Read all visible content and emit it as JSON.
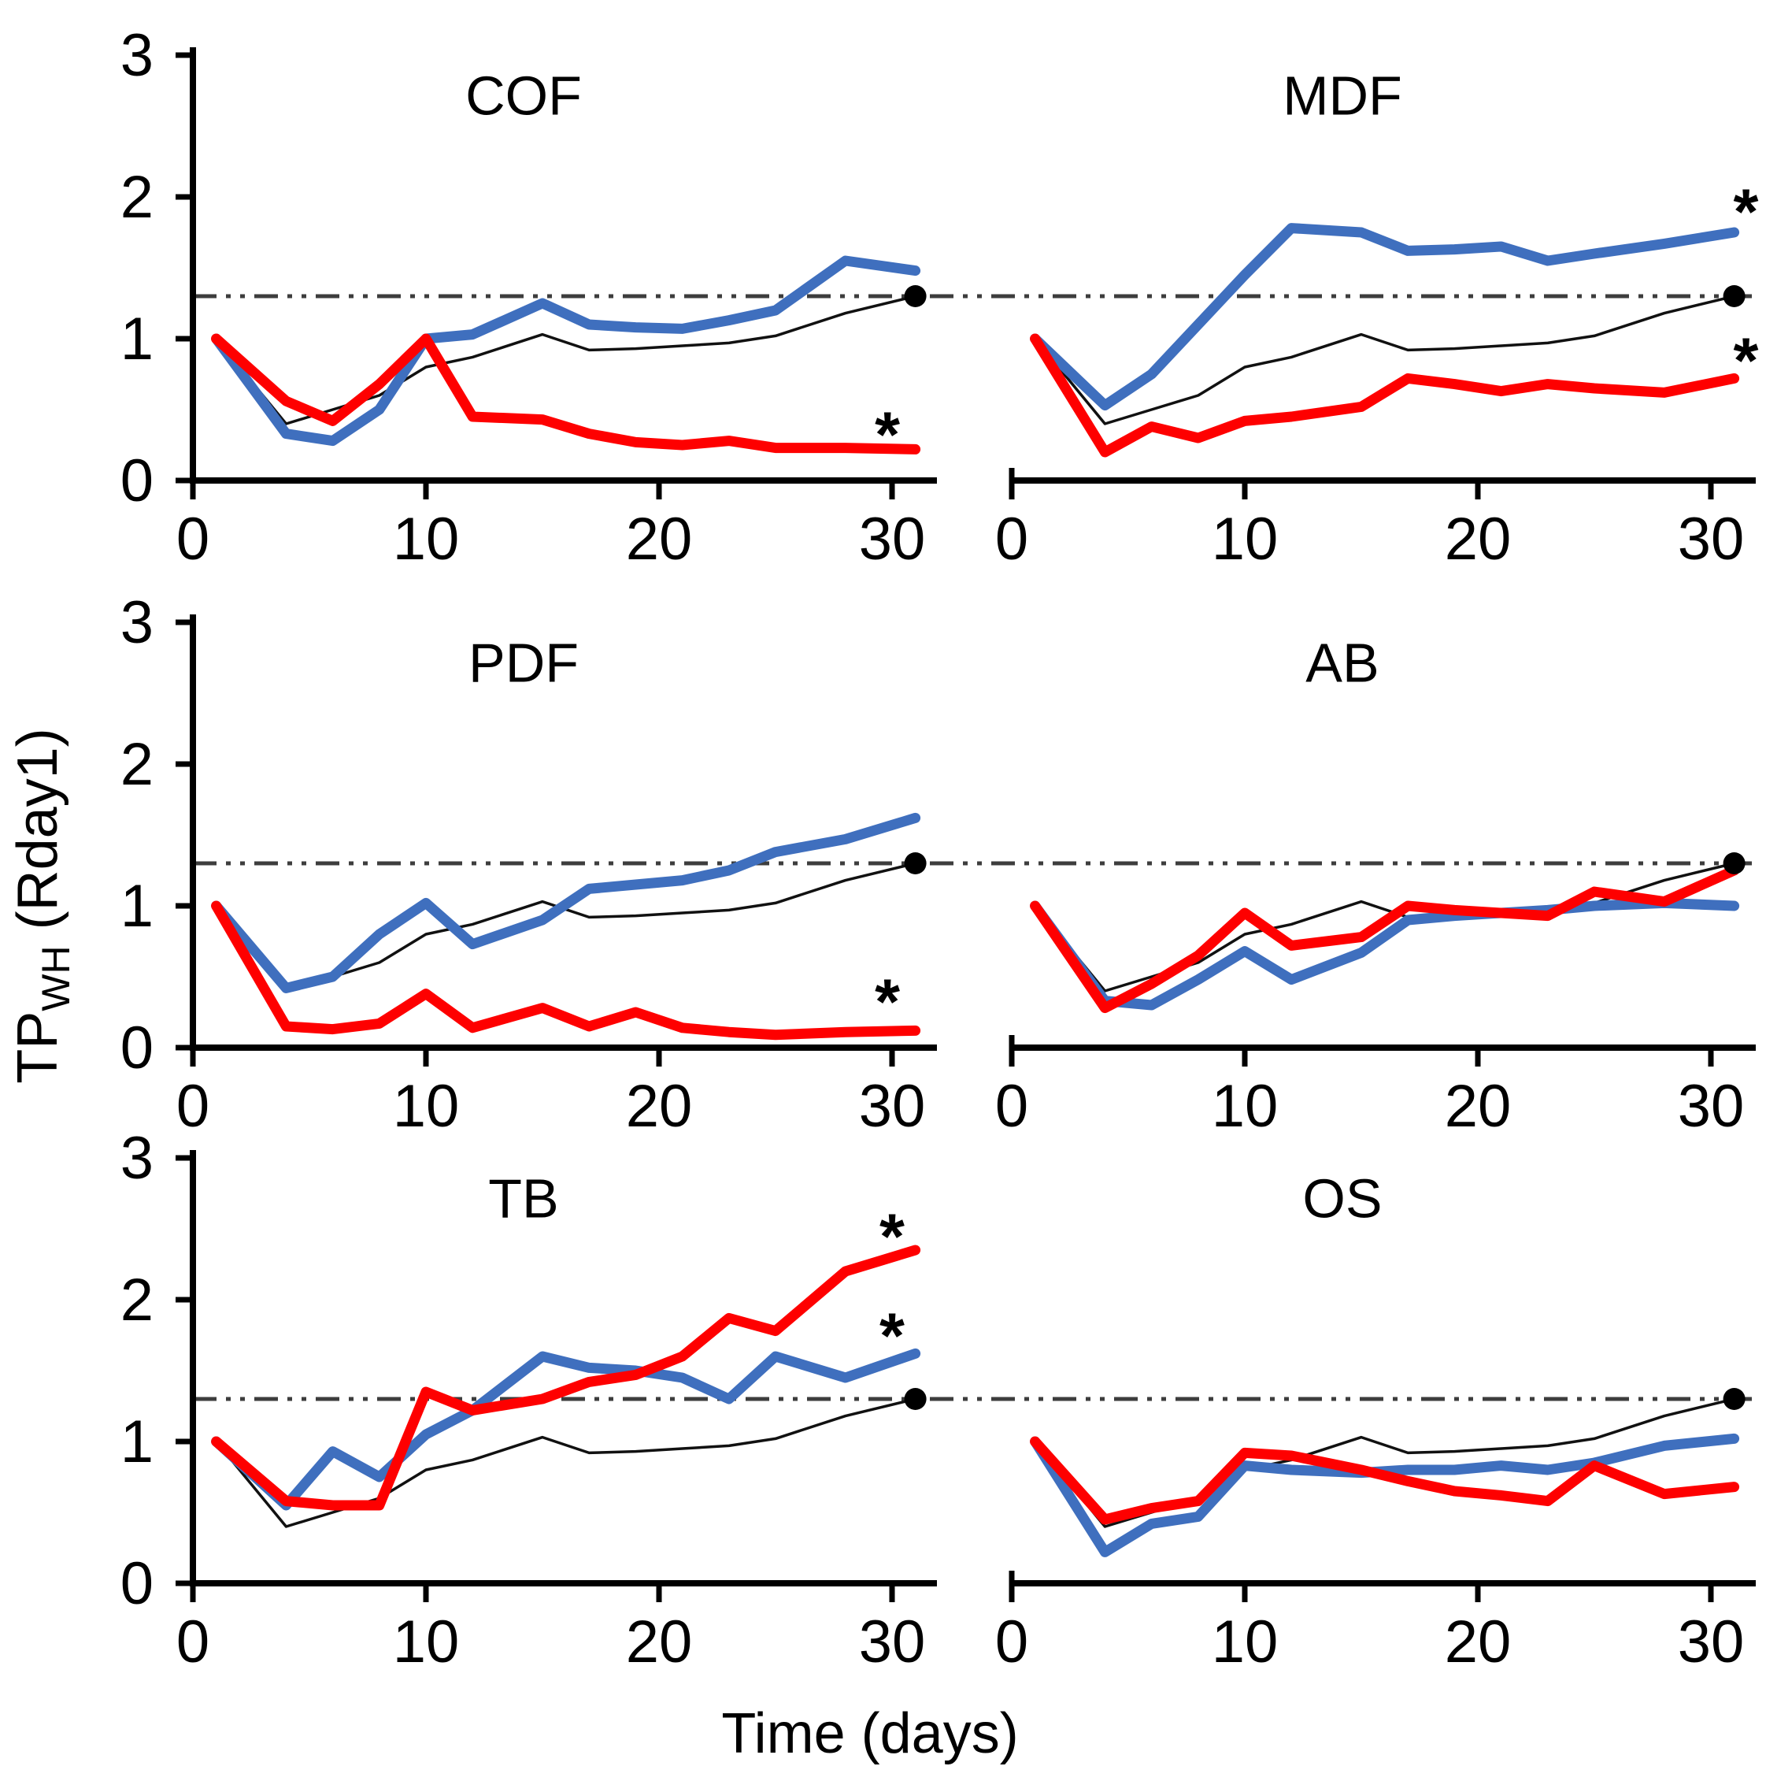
{
  "figure": {
    "x_axis_label": "Time (days)",
    "y_axis_label_main": "TP",
    "y_axis_label_sub": "WH",
    "y_axis_label_rest": " (Rday1)"
  },
  "chart_data": {
    "type": "line",
    "layout": "3x2 grid of panels, shared axes style",
    "x": {
      "label": "Time (days)",
      "ticks": [
        0,
        10,
        20,
        30
      ],
      "range": [
        0,
        31
      ]
    },
    "y": {
      "label": "TP_WH (Rday1)",
      "ticks": [
        0,
        1,
        2,
        3
      ],
      "range": [
        0,
        3
      ]
    },
    "days": [
      1,
      4,
      6,
      8,
      10,
      12,
      15,
      17,
      19,
      21,
      23,
      25,
      28,
      31
    ],
    "baseline": {
      "value": 1.3,
      "style": "dash-dot-dot",
      "color": "#3d3d3d"
    },
    "endpoint_dot": {
      "day": 31,
      "value": 1.3,
      "series": "reference"
    },
    "reference_series": {
      "name": "reference (thin black)",
      "values": [
        1.0,
        0.4,
        0.5,
        0.6,
        0.8,
        0.87,
        1.03,
        0.92,
        0.93,
        0.95,
        0.97,
        1.02,
        1.18,
        1.3
      ]
    },
    "colors": {
      "blue": "#3F6FBE",
      "red": "#FE0000",
      "reference": "#111111",
      "dot": "#000000"
    },
    "panels": [
      {
        "title": "COF",
        "row": 0,
        "col": 0,
        "series": [
          {
            "name": "blue",
            "values": [
              1.0,
              0.33,
              0.28,
              0.5,
              1.0,
              1.03,
              1.25,
              1.1,
              1.08,
              1.07,
              1.13,
              1.2,
              1.55,
              1.48
            ]
          },
          {
            "name": "red",
            "values": [
              1.0,
              0.56,
              0.42,
              0.68,
              1.0,
              0.45,
              0.43,
              0.33,
              0.27,
              0.25,
              0.28,
              0.23,
              0.23,
              0.22
            ]
          }
        ],
        "asterisks": [
          {
            "series": "red",
            "day": 29.8,
            "value": 0.45
          }
        ]
      },
      {
        "title": "MDF",
        "row": 0,
        "col": 1,
        "series": [
          {
            "name": "blue",
            "values": [
              1.0,
              0.53,
              0.75,
              1.1,
              1.45,
              1.78,
              1.75,
              1.62,
              1.63,
              1.65,
              1.55,
              1.6,
              1.67,
              1.75
            ]
          },
          {
            "name": "red",
            "values": [
              1.0,
              0.2,
              0.38,
              0.3,
              0.42,
              0.45,
              0.52,
              0.72,
              0.68,
              0.63,
              0.68,
              0.65,
              0.62,
              0.72
            ]
          }
        ],
        "asterisks": [
          {
            "series": "blue",
            "day": 31.5,
            "value": 2.02
          },
          {
            "series": "red",
            "day": 31.5,
            "value": 0.97
          }
        ]
      },
      {
        "title": "PDF",
        "row": 1,
        "col": 0,
        "series": [
          {
            "name": "blue",
            "values": [
              1.0,
              0.42,
              0.5,
              0.8,
              1.02,
              0.73,
              0.9,
              1.12,
              1.15,
              1.18,
              1.25,
              1.38,
              1.47,
              1.62
            ]
          },
          {
            "name": "red",
            "values": [
              1.0,
              0.15,
              0.13,
              0.17,
              0.38,
              0.14,
              0.28,
              0.15,
              0.25,
              0.14,
              0.11,
              0.09,
              0.11,
              0.12
            ]
          }
        ],
        "asterisks": [
          {
            "series": "red",
            "day": 29.8,
            "value": 0.45
          }
        ]
      },
      {
        "title": "AB",
        "row": 1,
        "col": 1,
        "series": [
          {
            "name": "blue",
            "values": [
              1.0,
              0.33,
              0.3,
              0.48,
              0.68,
              0.48,
              0.67,
              0.9,
              0.93,
              0.95,
              0.97,
              1.0,
              1.02,
              1.0
            ]
          },
          {
            "name": "red",
            "values": [
              1.0,
              0.28,
              0.45,
              0.65,
              0.95,
              0.72,
              0.78,
              1.0,
              0.97,
              0.95,
              0.93,
              1.1,
              1.03,
              1.25
            ]
          }
        ],
        "asterisks": []
      },
      {
        "title": "TB",
        "row": 2,
        "col": 0,
        "series": [
          {
            "name": "blue",
            "values": [
              1.0,
              0.55,
              0.93,
              0.75,
              1.05,
              1.22,
              1.6,
              1.52,
              1.5,
              1.45,
              1.3,
              1.6,
              1.45,
              1.62
            ]
          },
          {
            "name": "red",
            "values": [
              1.0,
              0.58,
              0.55,
              0.55,
              1.35,
              1.22,
              1.3,
              1.42,
              1.47,
              1.6,
              1.87,
              1.78,
              2.2,
              2.35
            ]
          }
        ],
        "asterisks": [
          {
            "series": "red",
            "day": 30.0,
            "value": 2.57
          },
          {
            "series": "blue",
            "day": 30.0,
            "value": 1.87
          }
        ]
      },
      {
        "title": "OS",
        "row": 2,
        "col": 1,
        "series": [
          {
            "name": "blue",
            "values": [
              1.0,
              0.22,
              0.42,
              0.47,
              0.83,
              0.8,
              0.78,
              0.8,
              0.8,
              0.83,
              0.8,
              0.85,
              0.97,
              1.02
            ]
          },
          {
            "name": "red",
            "values": [
              1.0,
              0.45,
              0.53,
              0.58,
              0.92,
              0.9,
              0.8,
              0.72,
              0.65,
              0.62,
              0.58,
              0.83,
              0.63,
              0.68
            ]
          }
        ],
        "asterisks": []
      }
    ]
  }
}
